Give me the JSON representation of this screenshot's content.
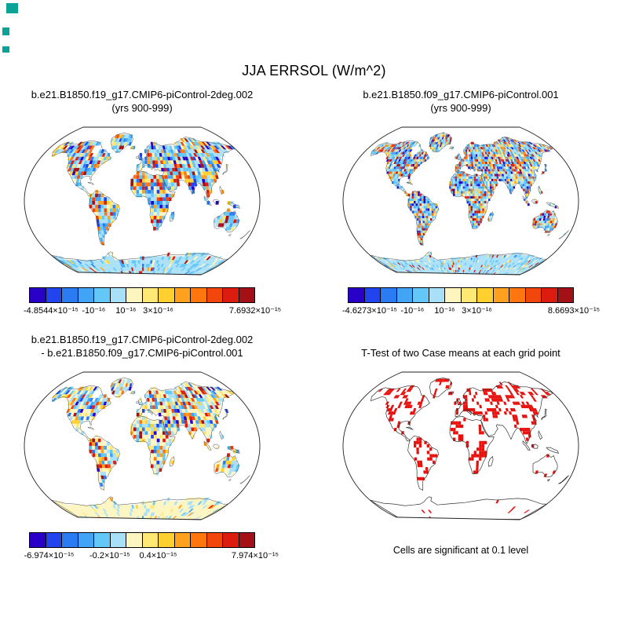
{
  "page": {
    "title": "JJA ERRSOL (W/m^2)",
    "background": "#ffffff"
  },
  "decorations": {
    "mark_color": "#0ba397"
  },
  "render": {
    "colormap": [
      "#2800c8",
      "#2244ee",
      "#2b7cf2",
      "#41a4f5",
      "#63c8f7",
      "#a8e0f8",
      "#fdf5bf",
      "#ffe873",
      "#ffd02e",
      "#ffa11e",
      "#ff760e",
      "#f2470c",
      "#dd1c10",
      "#a31016"
    ],
    "ttest_red": "#e8100c",
    "coast_color": "#333333",
    "boundary_color": "#222222",
    "maps": [
      {
        "mode": "cells",
        "grid_deg": 4.5,
        "seed": 11,
        "weights": [
          4,
          4,
          5,
          7,
          16,
          22,
          6,
          5,
          5,
          5,
          4,
          4,
          5,
          4
        ],
        "polar_weights": [
          0,
          0,
          1,
          2,
          14,
          72,
          4,
          2,
          1,
          1,
          0,
          0,
          2,
          1
        ]
      },
      {
        "mode": "cells",
        "grid_deg": 3,
        "seed": 23,
        "weights": [
          4,
          4,
          5,
          7,
          16,
          22,
          6,
          5,
          5,
          5,
          4,
          4,
          5,
          4
        ],
        "polar_weights": [
          0,
          0,
          1,
          2,
          14,
          72,
          4,
          2,
          1,
          1,
          0,
          0,
          2,
          1
        ]
      },
      {
        "mode": "cells",
        "grid_deg": 4.5,
        "seed": 37,
        "weights": [
          2,
          3,
          4,
          5,
          10,
          18,
          26,
          9,
          5,
          4,
          3,
          3,
          4,
          2
        ],
        "polar_weights": [
          0,
          0,
          0,
          1,
          2,
          8,
          80,
          4,
          1,
          1,
          0,
          0,
          1,
          0
        ]
      },
      {
        "mode": "ttest",
        "grid_deg": 4,
        "seed": 53,
        "red_prob": 0.58,
        "coarse_prob": 0.55,
        "polar_red_prob": 0.02
      }
    ]
  },
  "chart_data": [
    {
      "type": "heatmap",
      "panel": "top-left",
      "variable": "ERRSOL",
      "season": "JJA",
      "units": "W/m^2",
      "title_line1": "b.e21.B1850.f19_g17.CMIP6-piControl-2deg.002",
      "title_line2": "(yrs 900-999)",
      "projection": "robinson",
      "grid_resolution": "f19 (~2 degree)",
      "ocean": "masked white, land shows per-gridcell values",
      "value_range": [
        -4.8544e-15,
        7.6932e-15
      ],
      "colorbar_ticks": [
        {
          "label": "-4.8544×10⁻¹⁵",
          "pos": 0
        },
        {
          "label": "-10⁻¹⁶",
          "pos": 0.2857
        },
        {
          "label": "10⁻¹⁶",
          "pos": 0.4286
        },
        {
          "label": "3×10⁻¹⁶",
          "pos": 0.5714
        },
        {
          "label": "7.6932×10⁻¹⁵",
          "pos": 1
        }
      ],
      "pattern": "machine-precision spatial noise over land: mostly light blue (~1e-16) with scattered dark-blue negative and orange/red positive cells; Antarctica nearly uniform light blue"
    },
    {
      "type": "heatmap",
      "panel": "top-right",
      "variable": "ERRSOL",
      "season": "JJA",
      "units": "W/m^2",
      "title_line1": "b.e21.B1850.f09_g17.CMIP6-piControl.001",
      "title_line2": "(yrs 900-999)",
      "projection": "robinson",
      "grid_resolution": "f09 (~1 degree)",
      "ocean": "masked white, land shows per-gridcell values",
      "value_range": [
        -4.6273e-15,
        8.6693e-15
      ],
      "colorbar_ticks": [
        {
          "label": "-4.6273×10⁻¹⁵",
          "pos": 0
        },
        {
          "label": "-10⁻¹⁶",
          "pos": 0.2857
        },
        {
          "label": "10⁻¹⁶",
          "pos": 0.4286
        },
        {
          "label": "3×10⁻¹⁶",
          "pos": 0.5714
        },
        {
          "label": "8.6693×10⁻¹⁵",
          "pos": 1
        }
      ],
      "pattern": "same noise character as left panel but on a finer 1-degree grid"
    },
    {
      "type": "heatmap",
      "panel": "bottom-left",
      "variable": "ERRSOL difference",
      "season": "JJA",
      "units": "W/m^2",
      "title_line1": "b.e21.B1850.f19_g17.CMIP6-piControl-2deg.002",
      "title_line2": "- b.e21.B1850.f09_g17.CMIP6-piControl.001",
      "projection": "robinson",
      "ocean": "masked white, land shows per-gridcell values",
      "value_range": [
        -6.974e-15,
        7.974e-15
      ],
      "colorbar_ticks": [
        {
          "label": "-6.974×10⁻¹⁵",
          "pos": 0
        },
        {
          "label": "-0.2×10⁻¹⁵",
          "pos": 0.357
        },
        {
          "label": "0.4×10⁻¹⁵",
          "pos": 0.571
        },
        {
          "label": "7.974×10⁻¹⁵",
          "pos": 1
        }
      ],
      "pattern": "difference map dominated by pale yellow / pale blue near-zero cells with scattered saturated blue and red cells; Antarctica nearly uniform pale yellow"
    },
    {
      "type": "map",
      "panel": "bottom-right",
      "title_line1": "T-Test of two Case means at each grid point",
      "caption": "Cells are significant at 0.1 level",
      "projection": "robinson",
      "legend": "red cells = grid points significant at the 0.1 level",
      "pattern": "continent outlines on white with clumped red significant cells covering roughly one third of land; Antarctica outlined with almost no red"
    }
  ]
}
